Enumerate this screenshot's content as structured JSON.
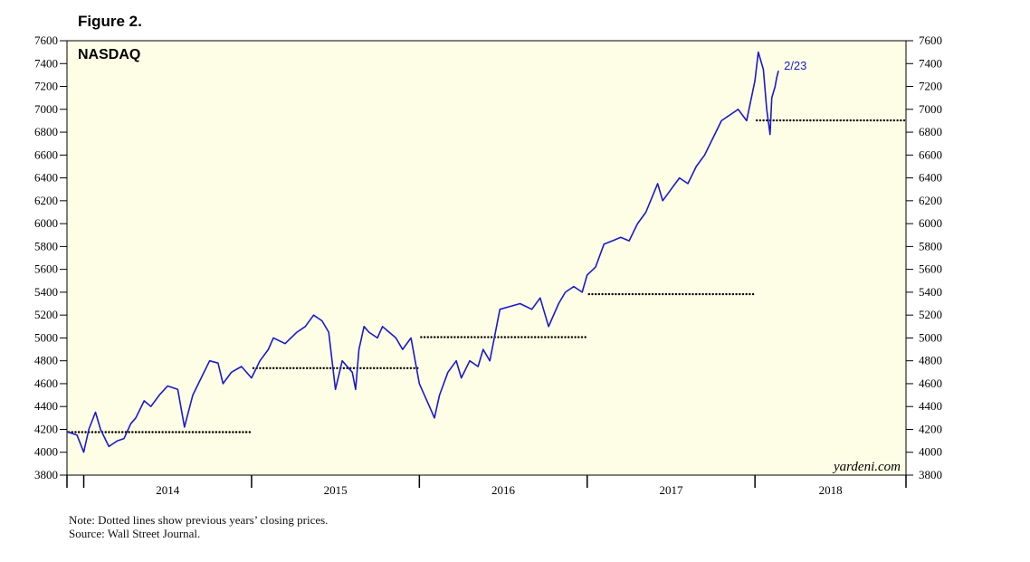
{
  "figure_label": "Figure 2.",
  "note": "Note: Dotted lines show previous years’ closing prices.",
  "source": "Source: Wall Street Journal.",
  "watermark": "yardeni.com",
  "colors": {
    "plot_bg": "#fefee6",
    "series": "#1a1acc",
    "dotted": "#000000",
    "axis": "#000000"
  },
  "chart_data": {
    "type": "line",
    "title": "NASDAQ",
    "xlabel": "",
    "ylabel": "",
    "ylim": [
      3800,
      7600
    ],
    "yticks": [
      3800,
      4000,
      4200,
      4400,
      4600,
      4800,
      5000,
      5200,
      5400,
      5600,
      5800,
      6000,
      6200,
      6400,
      6600,
      6800,
      7000,
      7200,
      7400,
      7600
    ],
    "xlim": [
      2013.9,
      2018.9
    ],
    "xtick_labels": [
      "2014",
      "2015",
      "2016",
      "2017",
      "2018"
    ],
    "grid": false,
    "end_annotation": "2/23",
    "series": [
      {
        "x": [
          2013.9,
          2013.96,
          2014.0,
          2014.03,
          2014.07,
          2014.1,
          2014.15,
          2014.2,
          2014.24,
          2014.28,
          2014.31,
          2014.36,
          2014.4,
          2014.45,
          2014.5,
          2014.56,
          2014.6,
          2014.65,
          2014.7,
          2014.75,
          2014.8,
          2014.83,
          2014.88,
          2014.94,
          2015.0,
          2015.05,
          2015.1,
          2015.13,
          2015.2,
          2015.27,
          2015.32,
          2015.37,
          2015.42,
          2015.46,
          2015.48,
          2015.5,
          2015.54,
          2015.6,
          2015.62,
          2015.64,
          2015.67,
          2015.7,
          2015.75,
          2015.78,
          2015.82,
          2015.86,
          2015.9,
          2015.95,
          2016.0,
          2016.03,
          2016.06,
          2016.09,
          2016.12,
          2016.17,
          2016.22,
          2016.25,
          2016.3,
          2016.35,
          2016.38,
          2016.42,
          2016.48,
          2016.55,
          2016.6,
          2016.67,
          2016.72,
          2016.77,
          2016.83,
          2016.87,
          2016.92,
          2016.97,
          2017.0,
          2017.05,
          2017.1,
          2017.15,
          2017.2,
          2017.25,
          2017.3,
          2017.35,
          2017.42,
          2017.45,
          2017.5,
          2017.55,
          2017.6,
          2017.65,
          2017.7,
          2017.75,
          2017.8,
          2017.85,
          2017.9,
          2017.95,
          2018.0,
          2018.02,
          2018.05,
          2018.07,
          2018.09,
          2018.1,
          2018.12,
          2018.13,
          2018.14
        ],
        "y": [
          4180,
          4150,
          4000,
          4200,
          4350,
          4200,
          4050,
          4100,
          4120,
          4250,
          4300,
          4450,
          4400,
          4500,
          4580,
          4550,
          4220,
          4500,
          4650,
          4800,
          4780,
          4600,
          4700,
          4750,
          4650,
          4800,
          4900,
          5000,
          4950,
          5050,
          5100,
          5200,
          5150,
          5050,
          4800,
          4550,
          4800,
          4700,
          4550,
          4900,
          5100,
          5050,
          5000,
          5100,
          5050,
          5000,
          4900,
          5000,
          4600,
          4500,
          4400,
          4300,
          4500,
          4700,
          4800,
          4650,
          4800,
          4750,
          4900,
          4800,
          5250,
          5280,
          5300,
          5250,
          5350,
          5100,
          5300,
          5400,
          5450,
          5400,
          5550,
          5620,
          5820,
          5850,
          5880,
          5850,
          6000,
          6100,
          6350,
          6200,
          6300,
          6400,
          6350,
          6500,
          6600,
          6750,
          6900,
          6950,
          7000,
          6900,
          7250,
          7500,
          7350,
          7000,
          6780,
          7100,
          7200,
          7280,
          7337
        ]
      }
    ],
    "reference_lines": [
      {
        "from": 2013.9,
        "to": 2015.0,
        "value": 4176
      },
      {
        "from": 2015.0,
        "to": 2016.0,
        "value": 4736
      },
      {
        "from": 2016.0,
        "to": 2017.0,
        "value": 5007
      },
      {
        "from": 2017.0,
        "to": 2018.0,
        "value": 5383
      },
      {
        "from": 2018.0,
        "to": 2018.9,
        "value": 6903
      }
    ]
  }
}
